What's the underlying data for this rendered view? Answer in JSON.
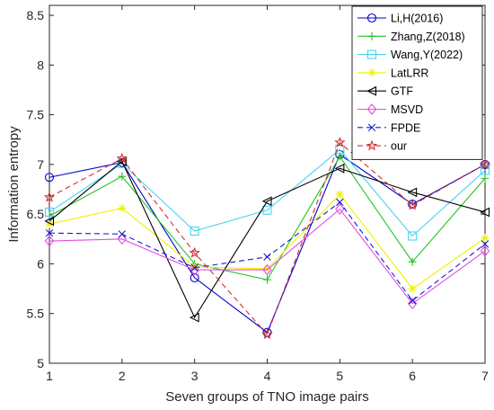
{
  "chart_data": {
    "type": "line",
    "xlabel": "Seven groups of TNO image pairs",
    "ylabel": "Information entropy",
    "x": [
      1,
      2,
      3,
      4,
      5,
      6,
      7
    ],
    "xlim": [
      1,
      7
    ],
    "ylim": [
      5,
      8.6
    ],
    "xticks": [
      "1",
      "2",
      "3",
      "4",
      "5",
      "6",
      "7"
    ],
    "yticks": [
      "5",
      "5.5",
      "6",
      "6.5",
      "7",
      "7.5",
      "8",
      "8.5"
    ],
    "grid": false,
    "legend_position": "top-right",
    "series": [
      {
        "name": "Li,H(2016)",
        "color": "#0000cd",
        "marker": "circle",
        "dash": "solid",
        "values": [
          6.87,
          7.02,
          5.86,
          5.31,
          7.1,
          6.6,
          7.0
        ]
      },
      {
        "name": "Zhang,Z(2018)",
        "color": "#22c422",
        "marker": "plus",
        "dash": "solid",
        "values": [
          6.48,
          6.88,
          6.0,
          5.84,
          7.08,
          6.02,
          6.86
        ]
      },
      {
        "name": "Wang,Y(2022)",
        "color": "#47d4f0",
        "marker": "square",
        "dash": "solid",
        "values": [
          6.52,
          7.01,
          6.33,
          6.54,
          7.15,
          6.28,
          6.94
        ]
      },
      {
        "name": "LatLRR",
        "color": "#f0f000",
        "marker": "star",
        "dash": "solid",
        "values": [
          6.4,
          6.56,
          5.97,
          5.95,
          6.7,
          5.75,
          6.26
        ]
      },
      {
        "name": "GTF",
        "color": "#000000",
        "marker": "triangle-left",
        "dash": "solid",
        "values": [
          6.43,
          7.03,
          5.46,
          6.63,
          6.96,
          6.72,
          6.52
        ]
      },
      {
        "name": "MSVD",
        "color": "#e34ce3",
        "marker": "diamond",
        "dash": "solid",
        "values": [
          6.23,
          6.25,
          5.94,
          5.94,
          6.55,
          5.6,
          6.13
        ]
      },
      {
        "name": "FPDE",
        "color": "#1a1acd",
        "marker": "x",
        "dash": "dashed",
        "values": [
          6.31,
          6.3,
          5.96,
          6.07,
          6.62,
          5.63,
          6.2
        ]
      },
      {
        "name": "our",
        "color": "#d22f2f",
        "marker": "pentagram",
        "dash": "dashed",
        "values": [
          6.67,
          7.06,
          6.11,
          5.29,
          7.22,
          6.59,
          7.0
        ]
      }
    ]
  }
}
